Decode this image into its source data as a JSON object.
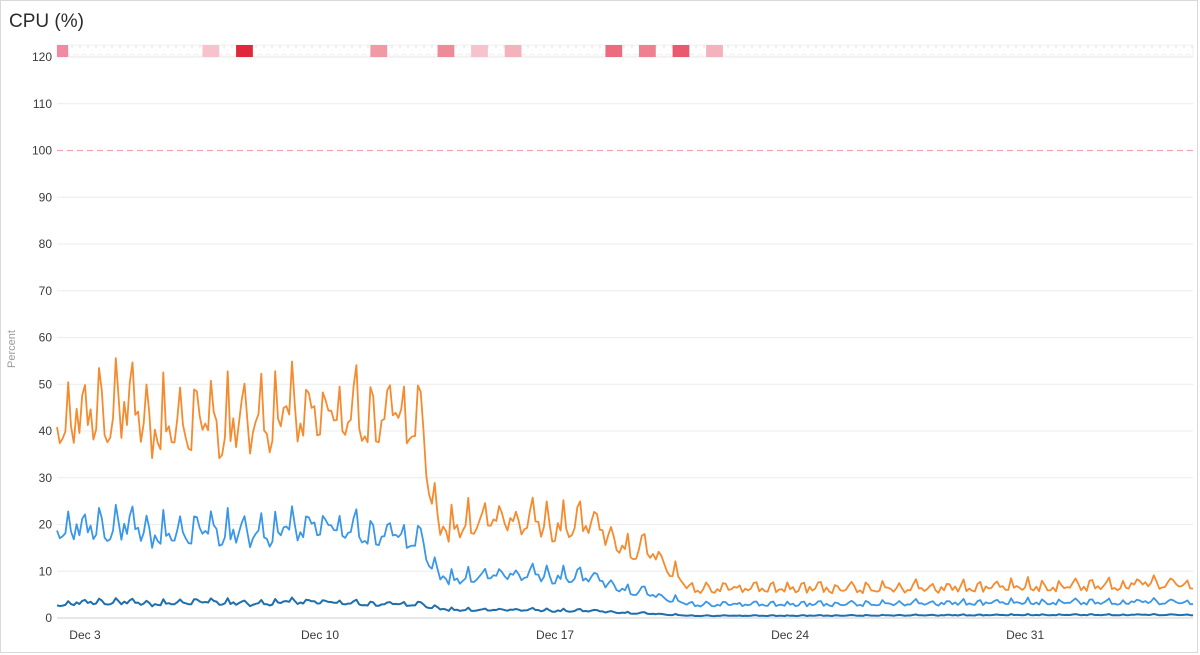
{
  "title": "CPU (%)",
  "chart_data": {
    "type": "line",
    "ylabel": "Percent",
    "xlabel": "",
    "ylim": [
      0,
      120
    ],
    "y_ticks": [
      0,
      10,
      20,
      30,
      40,
      50,
      60,
      70,
      80,
      90,
      100,
      110,
      120
    ],
    "x_ticks": [
      "Dec 3",
      "Dec 10",
      "Dec 17",
      "Dec 24",
      "Dec 31"
    ],
    "x_start": "Dec 2 04:00",
    "x_end": "Jan 5 00:00",
    "threshold": {
      "value": 100,
      "color": "#f4a3a8",
      "style": "dashed"
    },
    "grid": true,
    "colors": {
      "series_max": "#f58b2e",
      "series_avg": "#3a97e8",
      "series_min": "#1f6fad"
    },
    "series": [
      {
        "role": "max",
        "profile": [
          {
            "x": "Dec 2",
            "y": 39
          },
          {
            "x": "Dec 3",
            "y": 45
          },
          {
            "x": "Dec 4",
            "y": 46
          },
          {
            "x": "Dec 5",
            "y": 41
          },
          {
            "x": "Dec 6",
            "y": 43
          },
          {
            "x": "Dec 7",
            "y": 42
          },
          {
            "x": "Dec 8",
            "y": 42
          },
          {
            "x": "Dec 9",
            "y": 44
          },
          {
            "x": "Dec 10",
            "y": 44
          },
          {
            "x": "Dec 11",
            "y": 44
          },
          {
            "x": "Dec 12",
            "y": 44
          },
          {
            "x": "Dec 13",
            "y": 43
          },
          {
            "x": "Dec 13 12:00",
            "y": 19
          },
          {
            "x": "Dec 14",
            "y": 20
          },
          {
            "x": "Dec 15",
            "y": 21
          },
          {
            "x": "Dec 16",
            "y": 21
          },
          {
            "x": "Dec 17",
            "y": 20
          },
          {
            "x": "Dec 18",
            "y": 21
          },
          {
            "x": "Dec 19",
            "y": 16
          },
          {
            "x": "Dec 20",
            "y": 14
          },
          {
            "x": "Dec 20 20:00",
            "y": 8
          },
          {
            "x": "Dec 21",
            "y": 6.5
          },
          {
            "x": "Dec 24",
            "y": 6.5
          },
          {
            "x": "Dec 28",
            "y": 6.5
          },
          {
            "x": "Jan 1",
            "y": 7
          },
          {
            "x": "Jan 4",
            "y": 7.5
          }
        ]
      },
      {
        "role": "avg",
        "profile": [
          {
            "x": "Dec 2",
            "y": 18
          },
          {
            "x": "Dec 3",
            "y": 20
          },
          {
            "x": "Dec 4",
            "y": 20
          },
          {
            "x": "Dec 5",
            "y": 18
          },
          {
            "x": "Dec 6",
            "y": 19
          },
          {
            "x": "Dec 7",
            "y": 19
          },
          {
            "x": "Dec 8",
            "y": 18
          },
          {
            "x": "Dec 9",
            "y": 19
          },
          {
            "x": "Dec 10",
            "y": 20
          },
          {
            "x": "Dec 11",
            "y": 19
          },
          {
            "x": "Dec 12",
            "y": 18
          },
          {
            "x": "Dec 13",
            "y": 17
          },
          {
            "x": "Dec 13 12:00",
            "y": 9
          },
          {
            "x": "Dec 14",
            "y": 8.5
          },
          {
            "x": "Dec 15",
            "y": 9
          },
          {
            "x": "Dec 16",
            "y": 9.5
          },
          {
            "x": "Dec 17",
            "y": 9
          },
          {
            "x": "Dec 18",
            "y": 9
          },
          {
            "x": "Dec 19",
            "y": 6.5
          },
          {
            "x": "Dec 20",
            "y": 5
          },
          {
            "x": "Dec 20 20:00",
            "y": 3.5
          },
          {
            "x": "Dec 21",
            "y": 3
          },
          {
            "x": "Dec 24",
            "y": 3
          },
          {
            "x": "Dec 28",
            "y": 3.2
          },
          {
            "x": "Jan 1",
            "y": 3.5
          },
          {
            "x": "Jan 4",
            "y": 3.5
          }
        ]
      },
      {
        "role": "min",
        "profile": [
          {
            "x": "Dec 2",
            "y": 2.5
          },
          {
            "x": "Dec 3",
            "y": 3.5
          },
          {
            "x": "Dec 4",
            "y": 3.5
          },
          {
            "x": "Dec 5",
            "y": 3
          },
          {
            "x": "Dec 6",
            "y": 3.5
          },
          {
            "x": "Dec 7",
            "y": 3.5
          },
          {
            "x": "Dec 8",
            "y": 3
          },
          {
            "x": "Dec 9",
            "y": 3.5
          },
          {
            "x": "Dec 10",
            "y": 3.5
          },
          {
            "x": "Dec 11",
            "y": 3.2
          },
          {
            "x": "Dec 12",
            "y": 3
          },
          {
            "x": "Dec 13",
            "y": 3
          },
          {
            "x": "Dec 13 12:00",
            "y": 2
          },
          {
            "x": "Dec 14",
            "y": 1.8
          },
          {
            "x": "Dec 15",
            "y": 1.7
          },
          {
            "x": "Dec 16",
            "y": 1.8
          },
          {
            "x": "Dec 17",
            "y": 1.6
          },
          {
            "x": "Dec 18",
            "y": 1.6
          },
          {
            "x": "Dec 19",
            "y": 1.2
          },
          {
            "x": "Dec 20",
            "y": 0.9
          },
          {
            "x": "Dec 20 20:00",
            "y": 0.6
          },
          {
            "x": "Dec 21",
            "y": 0.5
          },
          {
            "x": "Dec 24",
            "y": 0.5
          },
          {
            "x": "Dec 28",
            "y": 0.6
          },
          {
            "x": "Jan 1",
            "y": 0.7
          },
          {
            "x": "Jan 4",
            "y": 0.7
          }
        ]
      }
    ],
    "event_markers": [
      {
        "time": "Dec 2 00:00",
        "color": "#f08aa0"
      },
      {
        "time": "Dec 6 12:00",
        "color": "#f6c3cc"
      },
      {
        "time": "Dec 7 12:00",
        "color": "#e0283b"
      },
      {
        "time": "Dec 11 12:00",
        "color": "#f09aa6"
      },
      {
        "time": "Dec 13 12:00",
        "color": "#ef8a98"
      },
      {
        "time": "Dec 14 12:00",
        "color": "#f6c3cc"
      },
      {
        "time": "Dec 15 12:00",
        "color": "#f4b2bc"
      },
      {
        "time": "Dec 18 12:00",
        "color": "#ed6b7e"
      },
      {
        "time": "Dec 19 12:00",
        "color": "#ef808f"
      },
      {
        "time": "Dec 20 12:00",
        "color": "#ea5a6e"
      },
      {
        "time": "Dec 21 12:00",
        "color": "#f4b2bc"
      }
    ]
  }
}
